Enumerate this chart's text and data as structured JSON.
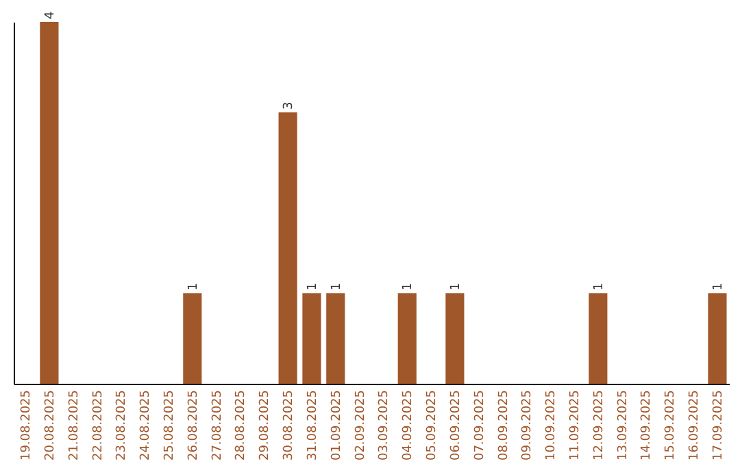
{
  "chart_data": {
    "type": "bar",
    "categories": [
      "19.08.2025",
      "20.08.2025",
      "21.08.2025",
      "22.08.2025",
      "23.08.2025",
      "24.08.2025",
      "25.08.2025",
      "26.08.2025",
      "27.08.2025",
      "28.08.2025",
      "29.08.2025",
      "30.08.2025",
      "31.08.2025",
      "01.09.2025",
      "02.09.2025",
      "03.09.2025",
      "04.09.2025",
      "05.09.2025",
      "06.09.2025",
      "07.09.2025",
      "08.09.2025",
      "09.09.2025",
      "10.09.2025",
      "11.09.2025",
      "12.09.2025",
      "13.09.2025",
      "14.09.2025",
      "15.09.2025",
      "16.09.2025",
      "17.09.2025"
    ],
    "values": [
      0,
      4,
      0,
      0,
      0,
      0,
      0,
      1,
      0,
      0,
      0,
      3,
      1,
      1,
      0,
      0,
      1,
      0,
      1,
      0,
      0,
      0,
      0,
      0,
      1,
      0,
      0,
      0,
      0,
      1
    ],
    "color": "#a0572a",
    "value_labels": [
      null,
      "4",
      null,
      null,
      null,
      null,
      null,
      "1",
      null,
      null,
      null,
      "3",
      "1",
      "1",
      null,
      null,
      "1",
      null,
      "1",
      null,
      null,
      null,
      null,
      null,
      "1",
      null,
      null,
      null,
      null,
      "1"
    ],
    "tick_labels": "x"
  }
}
